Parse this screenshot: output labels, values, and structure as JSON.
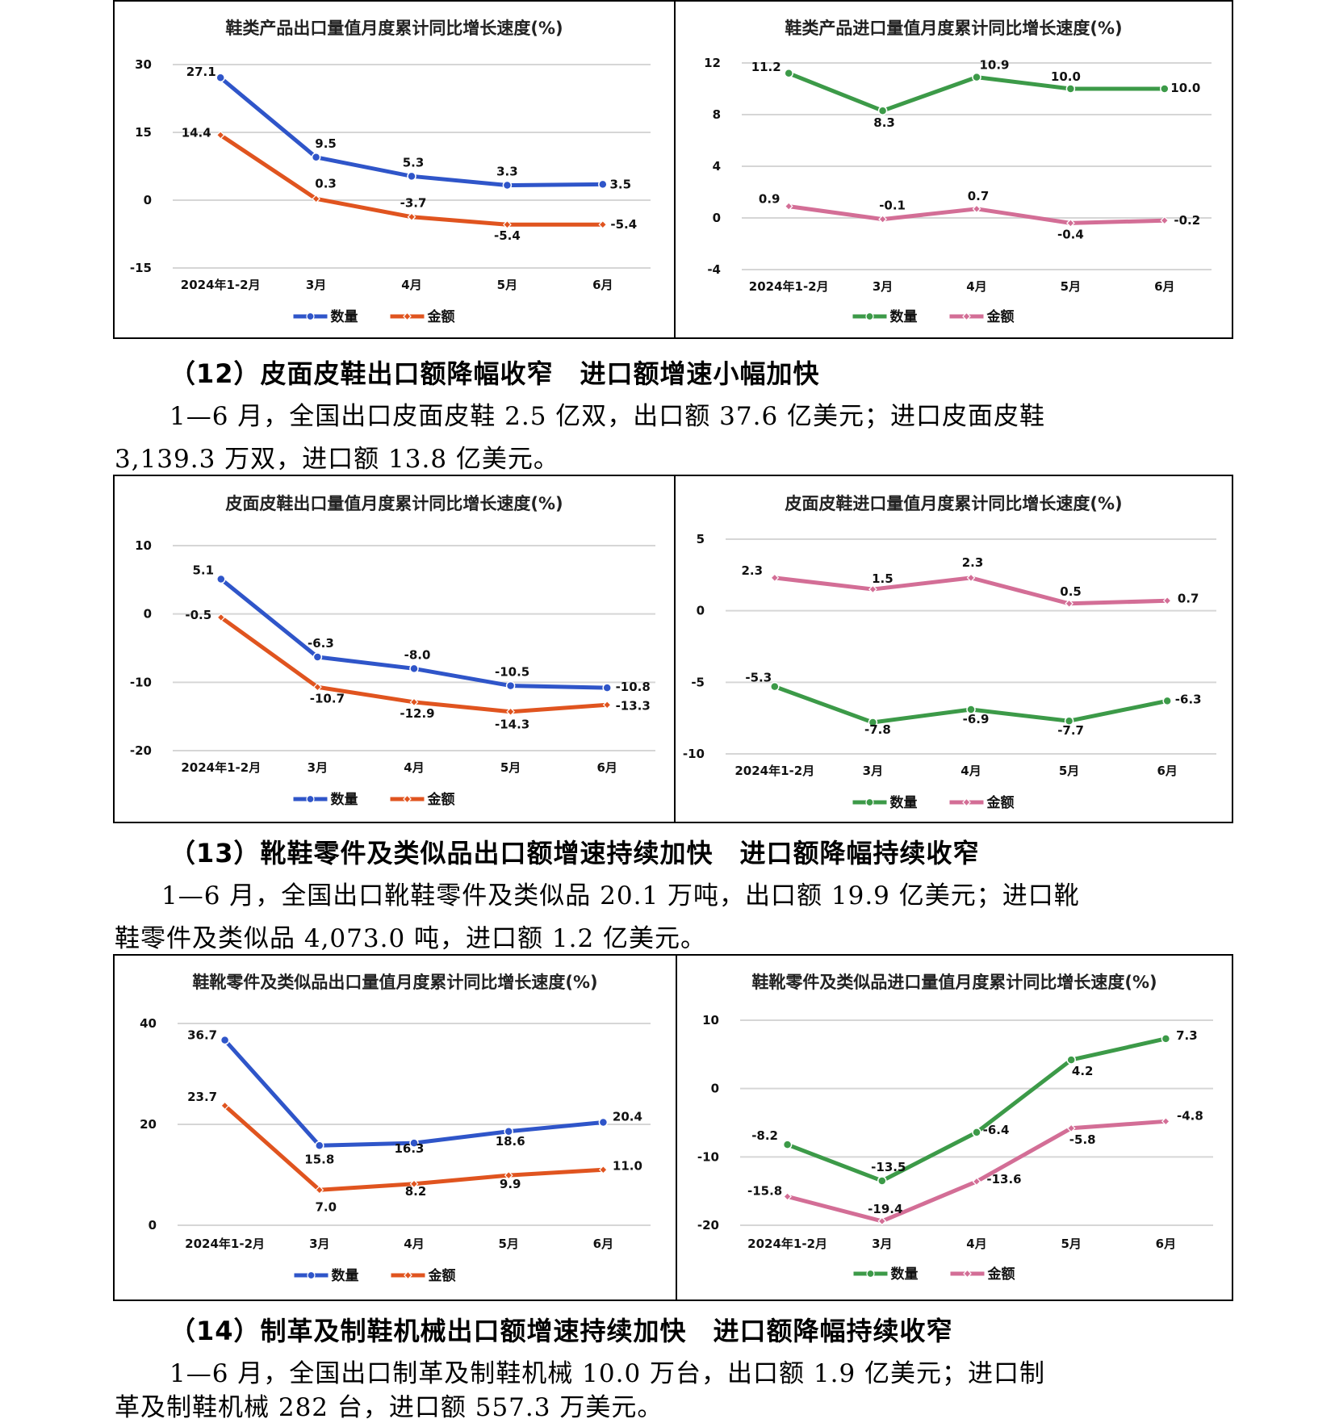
{
  "colors": {
    "blue": "#2f55c9",
    "orange": "#e0541f",
    "green": "#3c9a48",
    "pink": "#d36e96",
    "grid": "#d6d6d6"
  },
  "legend": {
    "quantity": "数量",
    "amount": "金额"
  },
  "sections": [
    {
      "heading": "（12）皮面皮鞋出口额降幅收窄　进口额增速小幅加快",
      "para_line1": "1—6 月，全国出口皮面皮鞋 2.5 亿双，出口额 37.6 亿美元；进口皮面皮鞋",
      "para_line2": "3,139.3 万双，进口额 13.8 亿美元。"
    },
    {
      "heading": "（13）靴鞋零件及类似品出口额增速持续加快　进口额降幅持续收窄",
      "para_line1": "1—6 月，全国出口靴鞋零件及类似品 20.1 万吨，出口额 19.9 亿美元；进口靴",
      "para_line2": "鞋零件及类似品 4,073.0 吨，进口额 1.2 亿美元。"
    },
    {
      "heading": "（14）制革及制鞋机械出口额增速持续加快　进口额降幅持续收窄",
      "para_line1": "1—6 月，全国出口制革及制鞋机械 10.0 万台，出口额 1.9 亿美元；进口制",
      "para_line2": "革及制鞋机械 282 台，进口额 557.3 万美元。"
    }
  ],
  "chart_data": [
    {
      "type": "line",
      "title": "鞋类产品出口量值月度累计同比增长速度(%)",
      "categories": [
        "2024年1-2月",
        "3月",
        "4月",
        "5月",
        "6月"
      ],
      "yticks": [
        30,
        15,
        0,
        -15
      ],
      "ylim": [
        -15,
        30
      ],
      "legend": "bottom",
      "series": [
        {
          "name": "数量",
          "color": "blue",
          "marker": "circle",
          "values": [
            27.1,
            9.5,
            5.3,
            3.3,
            3.5
          ],
          "labels": [
            "27.1",
            "9.5",
            "5.3",
            "3.3",
            "3.5"
          ]
        },
        {
          "name": "金额",
          "color": "orange",
          "marker": "diamond",
          "values": [
            14.4,
            0.3,
            -3.7,
            -5.4,
            -5.4
          ],
          "labels": [
            "14.4",
            "0.3",
            "-3.7",
            "-5.4",
            "-5.4"
          ]
        }
      ]
    },
    {
      "type": "line",
      "title": "鞋类产品进口量值月度累计同比增长速度(%)",
      "categories": [
        "2024年1-2月",
        "3月",
        "4月",
        "5月",
        "6月"
      ],
      "yticks": [
        12,
        8,
        4,
        0,
        -4
      ],
      "ylim": [
        -4,
        12
      ],
      "legend": "bottom",
      "series": [
        {
          "name": "数量",
          "color": "green",
          "marker": "circle",
          "values": [
            11.2,
            8.3,
            10.9,
            10.0,
            10.0
          ],
          "labels": [
            "11.2",
            "8.3",
            "10.9",
            "10.0",
            "10.0"
          ]
        },
        {
          "name": "金额",
          "color": "pink",
          "marker": "diamond",
          "values": [
            0.9,
            -0.1,
            0.7,
            -0.4,
            -0.2
          ],
          "labels": [
            "0.9",
            "-0.1",
            "0.7",
            "-0.4",
            "-0.2"
          ]
        }
      ]
    },
    {
      "type": "line",
      "title": "皮面皮鞋出口量值月度累计同比增长速度(%)",
      "categories": [
        "2024年1-2月",
        "3月",
        "4月",
        "5月",
        "6月"
      ],
      "yticks": [
        10,
        0,
        -10,
        -20
      ],
      "ylim": [
        -20,
        10
      ],
      "legend": "bottom",
      "series": [
        {
          "name": "数量",
          "color": "blue",
          "marker": "circle",
          "values": [
            5.1,
            -6.3,
            -8.0,
            -10.5,
            -10.8
          ],
          "labels": [
            "5.1",
            "-6.3",
            "-8.0",
            "-10.5",
            "-10.8"
          ]
        },
        {
          "name": "金额",
          "color": "orange",
          "marker": "diamond",
          "values": [
            -0.5,
            -10.7,
            -12.9,
            -14.3,
            -13.3
          ],
          "labels": [
            "-0.5",
            "-10.7",
            "-12.9",
            "-14.3",
            "-13.3"
          ]
        }
      ]
    },
    {
      "type": "line",
      "title": "皮面皮鞋进口量值月度累计同比增长速度(%)",
      "categories": [
        "2024年1-2月",
        "3月",
        "4月",
        "5月",
        "6月"
      ],
      "yticks": [
        5,
        0,
        -5,
        -10
      ],
      "ylim": [
        -10,
        5
      ],
      "legend": "bottom",
      "series": [
        {
          "name": "数量",
          "color": "green",
          "marker": "circle",
          "values": [
            -5.3,
            -7.8,
            -6.9,
            -7.7,
            -6.3
          ],
          "labels": [
            "-5.3",
            "-7.8",
            "-6.9",
            "-7.7",
            "-6.3"
          ]
        },
        {
          "name": "金额",
          "color": "pink",
          "marker": "diamond",
          "values": [
            2.3,
            1.5,
            2.3,
            0.5,
            0.7
          ],
          "labels": [
            "2.3",
            "1.5",
            "2.3",
            "0.5",
            "0.7"
          ]
        }
      ]
    },
    {
      "type": "line",
      "title": "鞋靴零件及类似品出口量值月度累计同比增长速度(%)",
      "categories": [
        "2024年1-2月",
        "3月",
        "4月",
        "5月",
        "6月"
      ],
      "yticks": [
        40,
        20,
        0
      ],
      "ylim": [
        0,
        40
      ],
      "legend": "bottom",
      "series": [
        {
          "name": "数量",
          "color": "blue",
          "marker": "circle",
          "values": [
            36.7,
            15.8,
            16.3,
            18.6,
            20.4
          ],
          "labels": [
            "36.7",
            "15.8",
            "16.3",
            "18.6",
            "20.4"
          ]
        },
        {
          "name": "金额",
          "color": "orange",
          "marker": "diamond",
          "values": [
            23.7,
            7.0,
            8.2,
            9.9,
            11.0
          ],
          "labels": [
            "23.7",
            "7.0",
            "8.2",
            "9.9",
            "11.0"
          ]
        }
      ]
    },
    {
      "type": "line",
      "title": "鞋靴零件及类似品进口量值月度累计同比增长速度(%)",
      "categories": [
        "2024年1-2月",
        "3月",
        "4月",
        "5月",
        "6月"
      ],
      "yticks": [
        10,
        0,
        -10,
        -20
      ],
      "ylim": [
        -20,
        10
      ],
      "legend": "bottom",
      "series": [
        {
          "name": "数量",
          "color": "green",
          "marker": "circle",
          "values": [
            -8.2,
            -13.5,
            -6.4,
            4.2,
            7.3
          ],
          "labels": [
            "-8.2",
            "-13.5",
            "-6.4",
            "4.2",
            "7.3"
          ]
        },
        {
          "name": "金额",
          "color": "pink",
          "marker": "diamond",
          "values": [
            -15.8,
            -19.4,
            -13.6,
            -5.8,
            -4.8
          ],
          "labels": [
            "-15.8",
            "-19.4",
            "-13.6",
            "-5.8",
            "-4.8"
          ]
        }
      ]
    }
  ]
}
